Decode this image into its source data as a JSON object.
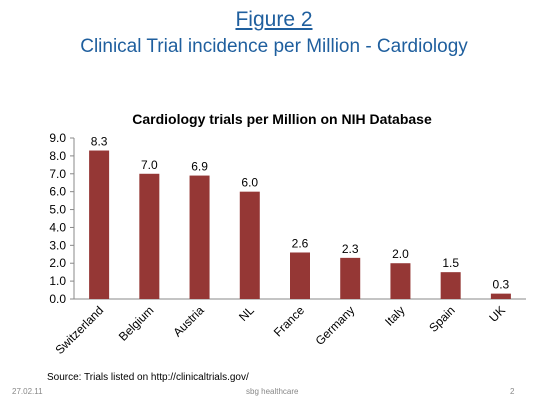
{
  "slide": {
    "figure_label": "Figure 2",
    "title": "Clinical Trial incidence per Million - Cardiology",
    "source": "Source: Trials listed on http://clinicaltrials.gov/",
    "footer_date": "27.02.11",
    "footer_org": "sbg healthcare",
    "page_number": "2"
  },
  "chart_data": {
    "type": "bar",
    "title": "Cardiology trials per Million on NIH Database",
    "xlabel": "",
    "ylabel": "",
    "categories": [
      "Switzerland",
      "Belgium",
      "Austria",
      "NL",
      "France",
      "Germany",
      "Italy",
      "Spain",
      "UK"
    ],
    "values": [
      8.3,
      7.0,
      6.9,
      6.0,
      2.6,
      2.3,
      2.0,
      1.5,
      0.3
    ],
    "value_labels": [
      "8.3",
      "7.0",
      "6.9",
      "6.0",
      "2.6",
      "2.3",
      "2.0",
      "1.5",
      "0.3"
    ],
    "ylim": [
      0,
      9
    ],
    "yticks": [
      "0.0",
      "1.0",
      "2.0",
      "3.0",
      "4.0",
      "5.0",
      "6.0",
      "7.0",
      "8.0",
      "9.0"
    ],
    "grid": false,
    "legend": "none",
    "bar_color": "#953735"
  }
}
